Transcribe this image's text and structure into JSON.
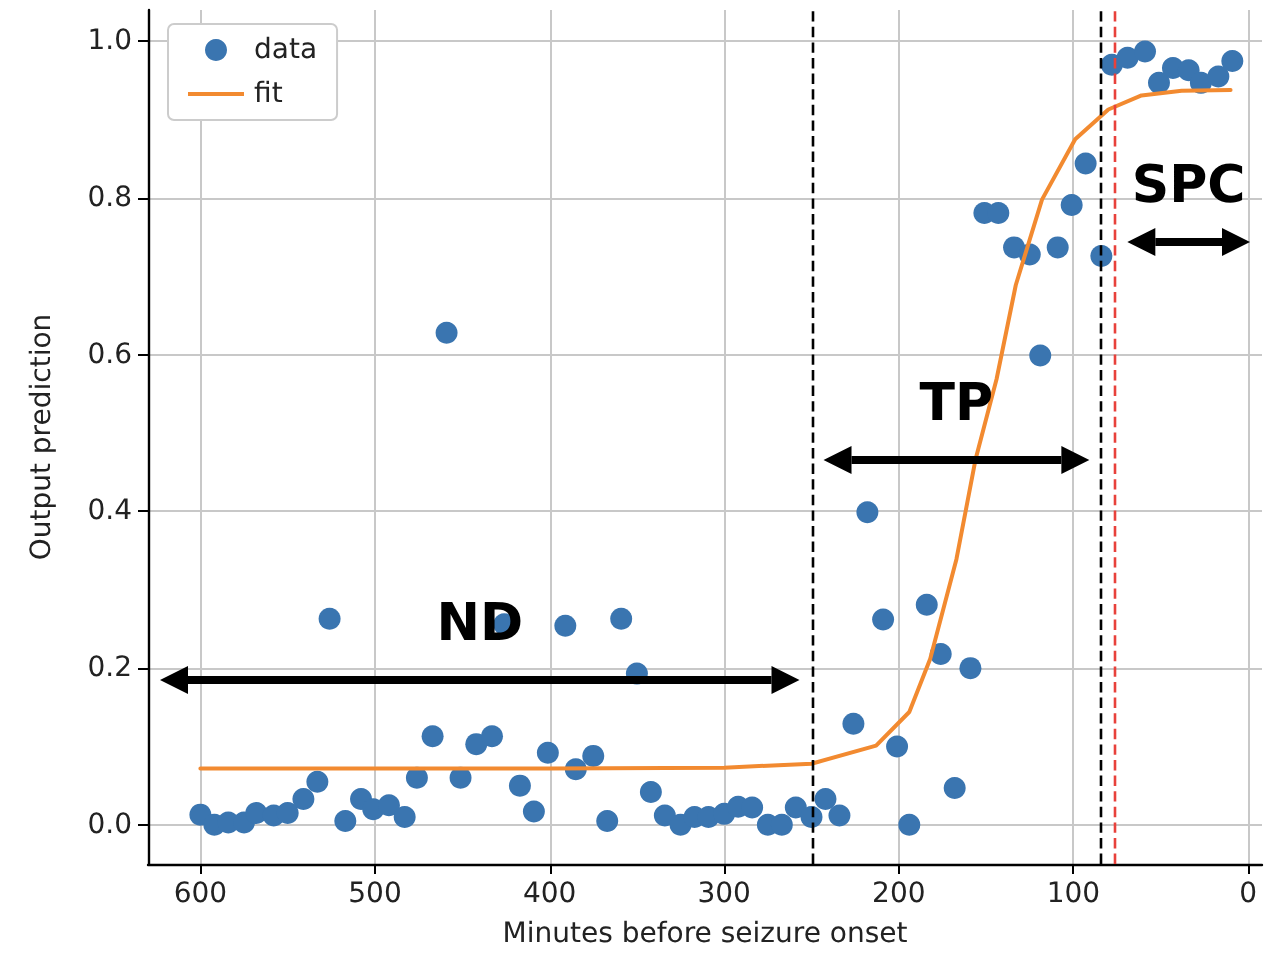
{
  "chart_data": {
    "type": "scatter",
    "xlabel": "Minutes before seizure onset",
    "ylabel": "Output prediction",
    "xlim": [
      630,
      -8
    ],
    "ylim": [
      -0.05,
      1.04
    ],
    "xticks": [
      600,
      500,
      400,
      300,
      200,
      100,
      0
    ],
    "yticks": [
      {
        "value": 0,
        "label": "0.0"
      },
      {
        "value": 0.2,
        "label": "0.2"
      },
      {
        "value": 0.4,
        "label": "0.4"
      },
      {
        "value": 0.6,
        "label": "0.6"
      },
      {
        "value": 0.8,
        "label": "0.8"
      },
      {
        "value": 1,
        "label": "1.0"
      }
    ],
    "grid": true,
    "legend": "top left",
    "series": [
      {
        "name": "data",
        "marker": "circle",
        "color": "#3a75b0",
        "x": [
          600,
          592,
          584,
          575,
          568,
          558,
          550,
          541,
          533,
          526,
          517,
          508,
          501,
          492,
          483,
          476,
          467,
          459,
          451,
          442,
          433,
          426,
          417,
          409,
          401,
          391,
          385,
          375,
          367,
          359,
          350,
          342,
          334,
          325,
          317,
          309,
          300,
          292,
          284,
          275,
          267,
          259,
          250,
          242,
          234,
          226,
          218,
          209,
          201,
          194,
          184,
          176,
          168,
          159,
          151,
          143,
          134,
          125,
          119,
          109,
          101,
          93,
          84,
          78,
          69,
          59,
          51,
          43,
          34,
          27,
          17,
          9
        ],
        "values": [
          0.013,
          0.0,
          0.003,
          0.003,
          0.015,
          0.012,
          0.015,
          0.033,
          0.055,
          0.263,
          0.005,
          0.033,
          0.02,
          0.025,
          0.01,
          0.06,
          0.113,
          0.628,
          0.06,
          0.103,
          0.113,
          0.256,
          0.05,
          0.017,
          0.092,
          0.254,
          0.071,
          0.088,
          0.005,
          0.263,
          0.193,
          0.042,
          0.012,
          0.0,
          0.01,
          0.01,
          0.014,
          0.023,
          0.022,
          0.0,
          0.0,
          0.022,
          0.01,
          0.033,
          0.012,
          0.129,
          0.399,
          0.262,
          0.1,
          0.0,
          0.281,
          0.218,
          0.047,
          0.2,
          0.781,
          0.781,
          0.737,
          0.728,
          0.599,
          0.737,
          0.791,
          0.844,
          0.726,
          0.97,
          0.979,
          0.987,
          0.947,
          0.966,
          0.963,
          0.947,
          0.955,
          0.975
        ]
      },
      {
        "name": "fit",
        "type": "line",
        "marker": "none",
        "line_style": "solid",
        "color": "#f28a30",
        "x": [
          600,
          400,
          300,
          250,
          213,
          194,
          182,
          167,
          156,
          144,
          133,
          118,
          99,
          80,
          61,
          38,
          10
        ],
        "values": [
          0.072,
          0.072,
          0.073,
          0.078,
          0.101,
          0.144,
          0.212,
          0.339,
          0.467,
          0.569,
          0.689,
          0.798,
          0.875,
          0.913,
          0.931,
          0.937,
          0.938
        ]
      }
    ],
    "ref_lines": [
      {
        "axis": "x",
        "value": 250,
        "color": "#000000",
        "line_style": "dashed"
      },
      {
        "axis": "x",
        "value": 84,
        "color": "#000000",
        "line_style": "dashed"
      },
      {
        "axis": "x",
        "value": 76,
        "color": "#e8413b",
        "line_style": "dashed"
      }
    ],
    "annotations": [
      "ND",
      "TP",
      "SPC"
    ]
  }
}
